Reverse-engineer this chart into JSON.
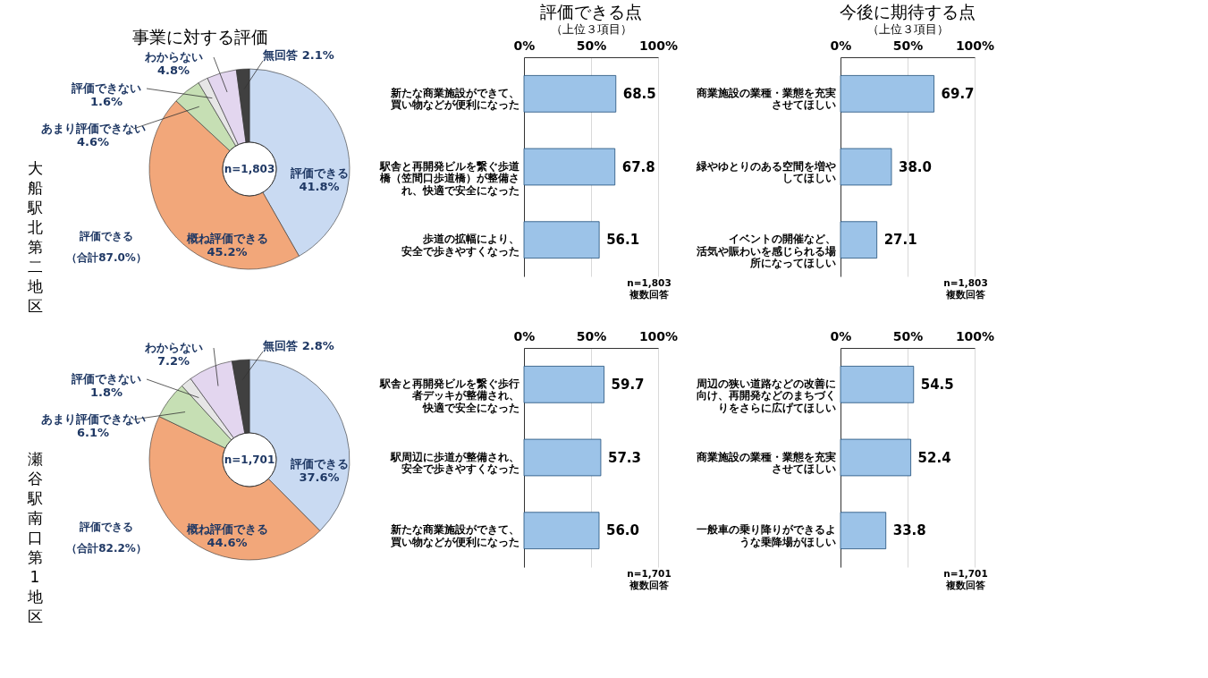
{
  "chart_data": [
    {
      "type": "donut",
      "title": "事業に対する評価",
      "ylabel": "大船駅北第二地区",
      "categories": [
        "評価できる",
        "概ね評価できる",
        "あまり評価できない",
        "評価できない",
        "わからない",
        "無回答"
      ],
      "values": [
        41.8,
        45.2,
        4.6,
        1.6,
        4.8,
        2.1
      ],
      "value_labels": [
        "41.8%",
        "45.2%",
        "4.6%",
        "1.6%",
        "4.8%",
        "2.1%"
      ],
      "colors": [
        "#c9daf2",
        "#f2a77a",
        "#c6dfb4",
        "#e6e6e6",
        "#e3d6ef",
        "#404040"
      ],
      "annotations": [
        "n=1,803",
        "評価できる",
        "（合計87.0%）"
      ]
    },
    {
      "type": "bar",
      "orientation": "horizontal",
      "title": "評価できる点",
      "subtitle": "（上位３項目）",
      "categories": [
        "新たな商業施設ができて、買い物などが便利になった",
        "駅舎と再開発ビルを繋ぐ歩道橋（笠間口歩道橋）が整備され、快適で安全になった",
        "歩道の拡幅により、安全で歩きやすくなった"
      ],
      "values": [
        68.5,
        67.8,
        56.1
      ],
      "value_labels": [
        "68.5",
        "67.8",
        "56.1"
      ],
      "color": "#9cc3e8",
      "xlim": [
        0,
        100
      ],
      "xticks": [
        {
          "value": 0,
          "label": "0%"
        },
        {
          "value": 50,
          "label": "50%"
        },
        {
          "value": 100,
          "label": "100%"
        }
      ],
      "annotations": [
        "n=1,803",
        "複数回答"
      ],
      "grid": "x"
    },
    {
      "type": "bar",
      "orientation": "horizontal",
      "title": "今後に期待する点",
      "subtitle": "（上位３項目）",
      "categories": [
        "商業施設の業種・業態を充実させてほしい",
        "緑やゆとりのある空間を増やしてほしい",
        "イベントの開催など、活気や賑わいを感じられる場所になってほしい"
      ],
      "values": [
        69.7,
        38.0,
        27.1
      ],
      "value_labels": [
        "69.7",
        "38.0",
        "27.1"
      ],
      "color": "#9cc3e8",
      "xlim": [
        0,
        100
      ],
      "xticks": [
        {
          "value": 0,
          "label": "0%"
        },
        {
          "value": 50,
          "label": "50%"
        },
        {
          "value": 100,
          "label": "100%"
        }
      ],
      "annotations": [
        "n=1,803",
        "複数回答"
      ],
      "grid": "x"
    },
    {
      "type": "donut",
      "ylabel": "瀬谷駅南口第1地区",
      "categories": [
        "評価できる",
        "概ね評価できる",
        "あまり評価できない",
        "評価できない",
        "わからない",
        "無回答"
      ],
      "values": [
        37.6,
        44.6,
        6.1,
        1.8,
        7.2,
        2.8
      ],
      "value_labels": [
        "37.6%",
        "44.6%",
        "6.1%",
        "1.8%",
        "7.2%",
        "2.8%"
      ],
      "colors": [
        "#c9daf2",
        "#f2a77a",
        "#c6dfb4",
        "#e6e6e6",
        "#e3d6ef",
        "#404040"
      ],
      "annotations": [
        "n=1,701",
        "評価できる",
        "（合計82.2%）"
      ]
    },
    {
      "type": "bar",
      "orientation": "horizontal",
      "categories": [
        "駅舎と再開発ビルを繋ぐ歩行者デッキが整備され、快適で安全になった",
        "駅周辺に歩道が整備され、安全で歩きやすくなった",
        "新たな商業施設ができて、買い物などが便利になった"
      ],
      "values": [
        59.7,
        57.3,
        56.0
      ],
      "value_labels": [
        "59.7",
        "57.3",
        "56.0"
      ],
      "color": "#9cc3e8",
      "xlim": [
        0,
        100
      ],
      "xticks": [
        {
          "value": 0,
          "label": "0%"
        },
        {
          "value": 50,
          "label": "50%"
        },
        {
          "value": 100,
          "label": "100%"
        }
      ],
      "annotations": [
        "n=1,701",
        "複数回答"
      ],
      "grid": "x"
    },
    {
      "type": "bar",
      "orientation": "horizontal",
      "categories": [
        "周辺の狭い道路などの改善に向け、再開発などのまちづくりをさらに広げてほしい",
        "商業施設の業種・業態を充実させてほしい",
        "一般車の乗り降りができるような乗降場がほしい"
      ],
      "values": [
        54.5,
        52.4,
        33.8
      ],
      "value_labels": [
        "54.5",
        "52.4",
        "33.8"
      ],
      "color": "#9cc3e8",
      "xlim": [
        0,
        100
      ],
      "xticks": [
        {
          "value": 0,
          "label": "0%"
        },
        {
          "value": 50,
          "label": "50%"
        },
        {
          "value": 100,
          "label": "100%"
        }
      ],
      "annotations": [
        "n=1,701",
        "複数回答"
      ],
      "grid": "x"
    }
  ]
}
